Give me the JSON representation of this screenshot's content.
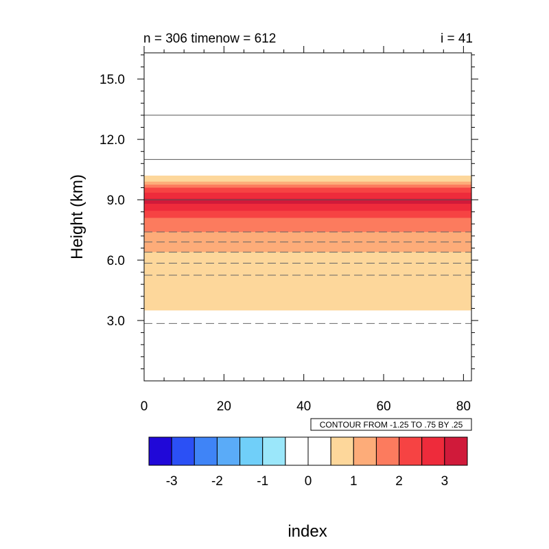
{
  "chart_data": {
    "type": "contour",
    "title_left": "n = 306 timenow = 612",
    "title_right": "i = 41",
    "xlabel": "index",
    "ylabel": "Height (km)",
    "xlim": [
      0,
      82
    ],
    "ylim": [
      0,
      16.3
    ],
    "x_ticks": [
      0,
      20,
      40,
      60,
      80
    ],
    "x_tick_labels": [
      "0",
      "20",
      "40",
      "60",
      "80"
    ],
    "y_ticks": [
      3.0,
      6.0,
      9.0,
      12.0,
      15.0
    ],
    "y_tick_labels": [
      "3.0",
      "6.0",
      "9.0",
      "12.0",
      "15.0"
    ],
    "contour_info": "CONTOUR FROM -1.25 TO .75 BY .25",
    "filled_bands": [
      {
        "y0": 3.5,
        "y1": 10.2,
        "color": "#fdd79b"
      },
      {
        "y0": 6.4,
        "y1": 9.9,
        "color": "#fdac79"
      },
      {
        "y0": 7.4,
        "y1": 9.75,
        "color": "#fc7b5e"
      },
      {
        "y0": 8.1,
        "y1": 9.6,
        "color": "#f64343"
      },
      {
        "y0": 8.45,
        "y1": 9.35,
        "color": "#ee2b3b"
      },
      {
        "y0": 8.8,
        "y1": 9.05,
        "color": "#d01a3a"
      }
    ],
    "contour_lines": [
      {
        "y": 13.2,
        "style": "solid"
      },
      {
        "y": 11.0,
        "style": "solid"
      },
      {
        "y": 9.0,
        "style": "solid"
      },
      {
        "y": 7.4,
        "style": "dashed"
      },
      {
        "y": 6.9,
        "style": "dashed"
      },
      {
        "y": 6.4,
        "style": "dashed"
      },
      {
        "y": 5.85,
        "style": "dashed"
      },
      {
        "y": 5.25,
        "style": "dashed"
      },
      {
        "y": 2.85,
        "style": "dashed"
      }
    ],
    "colorbar": {
      "colors": [
        "#2008d8",
        "#2b50f5",
        "#3f84f7",
        "#5aabf8",
        "#70cff9",
        "#9be7fa",
        "#ffffff",
        "#ffffff",
        "#fdd79b",
        "#fdac79",
        "#fc7b5e",
        "#f64343",
        "#ee2b3b",
        "#d01a3a"
      ],
      "labels": [
        "-3",
        "-2",
        "-1",
        "0",
        "1",
        "2",
        "3"
      ]
    }
  }
}
